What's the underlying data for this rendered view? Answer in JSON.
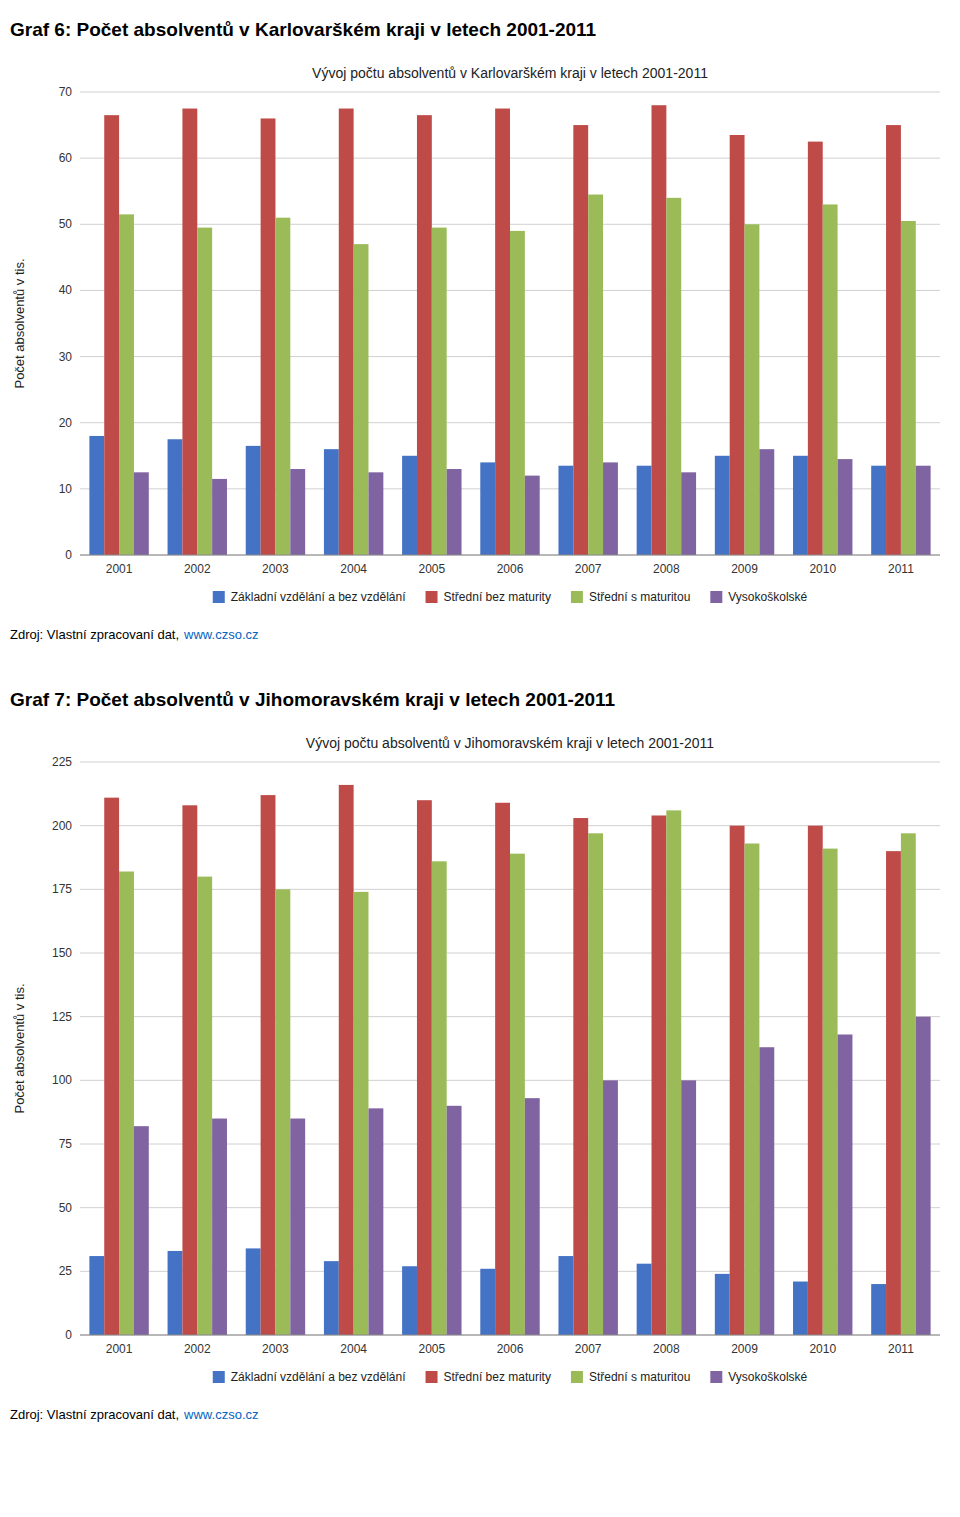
{
  "chart_data": [
    {
      "type": "bar",
      "title": "Graf 6: Počet absolventů v Karlovarškém kraji v letech 2001-2011",
      "subtitle": "Vývoj počtu absolventů v Karlovarškém kraji v letech 2001-2011",
      "ylabel": "Počet absolventů v tis.",
      "categories": [
        "2001",
        "2002",
        "2003",
        "2004",
        "2005",
        "2006",
        "2007",
        "2008",
        "2009",
        "2010",
        "2011"
      ],
      "series": [
        {
          "name": "Základní vzdělání a bez vzdělání",
          "color": "#4472C4",
          "values": [
            18.0,
            17.5,
            16.5,
            16.0,
            15.0,
            14.0,
            13.5,
            13.5,
            15.0,
            15.0,
            13.5
          ]
        },
        {
          "name": "Střední bez maturity",
          "color": "#BE4B48",
          "values": [
            66.5,
            67.5,
            66.0,
            67.5,
            66.5,
            67.5,
            65.0,
            68.0,
            63.5,
            62.5,
            65.0
          ]
        },
        {
          "name": "Střední s maturitou",
          "color": "#9BBB59",
          "values": [
            51.5,
            49.5,
            51.0,
            47.0,
            49.5,
            49.0,
            54.5,
            54.0,
            50.0,
            53.0,
            50.5
          ]
        },
        {
          "name": "Vysokoškolské",
          "color": "#8064A2",
          "values": [
            12.5,
            11.5,
            13.0,
            12.5,
            13.0,
            12.0,
            14.0,
            12.5,
            16.0,
            14.5,
            13.5
          ]
        }
      ],
      "ylim": [
        0,
        70
      ],
      "yticks": [
        0,
        10,
        20,
        30,
        40,
        50,
        60,
        70
      ],
      "grid": true,
      "legend": "bottom",
      "annotations": [
        "Zdroj: Vlastní zpracovaní dat,",
        "www.czso.cz"
      ]
    },
    {
      "type": "bar",
      "title": "Graf 7: Počet absolventů v Jihomoravském kraji v letech 2001-2011",
      "subtitle": "Vývoj počtu absolventů v Jihomoravském kraji v letech 2001-2011",
      "ylabel": "Počet absolventů v tis.",
      "categories": [
        "2001",
        "2002",
        "2003",
        "2004",
        "2005",
        "2006",
        "2007",
        "2008",
        "2009",
        "2010",
        "2011"
      ],
      "series": [
        {
          "name": "Základní vzdělání a bez vzdělání",
          "color": "#4472C4",
          "values": [
            31.0,
            33.0,
            34.0,
            29.0,
            27.0,
            26.0,
            31.0,
            28.0,
            24.0,
            21.0,
            20.0
          ]
        },
        {
          "name": "Střední bez maturity",
          "color": "#BE4B48",
          "values": [
            211.0,
            208.0,
            212.0,
            216.0,
            210.0,
            209.0,
            203.0,
            204.0,
            200.0,
            200.0,
            190.0
          ]
        },
        {
          "name": "Střední s maturitou",
          "color": "#9BBB59",
          "values": [
            182.0,
            180.0,
            175.0,
            174.0,
            186.0,
            189.0,
            197.0,
            206.0,
            193.0,
            191.0,
            197.0
          ]
        },
        {
          "name": "Vysokoškolské",
          "color": "#8064A2",
          "values": [
            82.0,
            85.0,
            85.0,
            89.0,
            90.0,
            93.0,
            100.0,
            100.0,
            113.0,
            118.0,
            125.0
          ]
        }
      ],
      "ylim": [
        0,
        225
      ],
      "yticks": [
        0,
        25,
        50,
        75,
        100,
        125,
        150,
        175,
        200,
        225
      ],
      "grid": true,
      "legend": "bottom",
      "annotations": [
        "Zdroj: Vlastní zpracovaní dat,",
        "www.czso.cz"
      ]
    }
  ]
}
